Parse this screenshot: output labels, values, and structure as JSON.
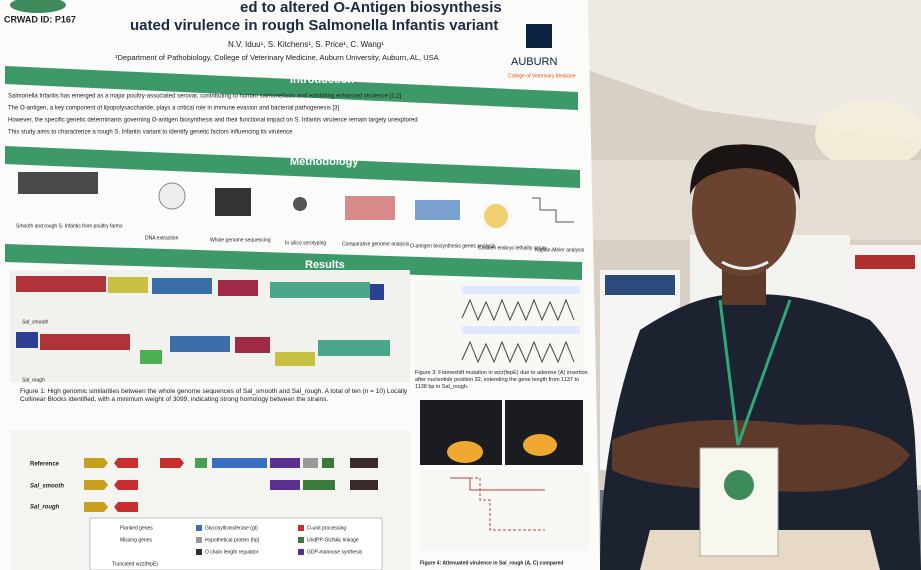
{
  "poster": {
    "id": "CRWAD ID: P167",
    "title_line1": "ed to altered O-Antigen biosynthesis",
    "title_line2": "uated virulence in rough Salmonella Infantis variant",
    "authors": "N.V. Iduu¹, S. Kitchens¹, S. Price¹, C. Wang¹",
    "affiliation": "¹Department of Pathobiology, College of Veterinary Medicine, Auburn University, Auburn, AL, USA",
    "logo_name": "AUBURN",
    "logo_sub": "College of Veterinary Medicine",
    "introduction": {
      "heading": "Introduction",
      "bullets": [
        "Salmonella Infantis has emerged as a major poultry-associated serovar, contributing to human salmonellosis and exhibiting enhanced virulence [1,2]",
        "The O-antigen, a key component of lipopolysaccharide, plays a critical role in immune evasion and bacterial pathogenesis [3]",
        "However, the specific genetic determinants governing O-antigen biosynthesis and their functional impact on S. Infantis virulence remain largely unexplored",
        "This study aims to characterize a rough S. Infantis variant to identify genetic factors influencing its virulence"
      ]
    },
    "methodology": {
      "heading": "Methodology",
      "steps": [
        "Smooth and rough S. Infantis from poultry farms",
        "DNA extraction",
        "Whole genome sequencing",
        "In silico serotyping",
        "Comparative genome analysis",
        "O-antigen biosynthesis genes analysis",
        "Chicken embryo lethality assay",
        "Kaplan-Meier analysis"
      ]
    },
    "results": {
      "heading": "Results",
      "track_smooth": "Sal_smooth",
      "track_rough": "Sal_rough",
      "figure1_caption": "Figure 1: High genomic similarities between the whole genome sequences of Sal_smooth and Sal_rough. A total of ten (n = 10) Locally Collinear Blocks identified, with a minimum weight of 3099, indicating strong homology between the strains.",
      "figure3_caption": "Figure 3: Frameshift mutation in wzz(fepE) due to adenine (A) insertion after nucleotide position 32, extending the gene length from 1137 to 1138 bp in Sal_rough.",
      "figure4_caption": "Figure 4: Attenuated virulence in Sal_rough (A, C) compared",
      "rows": [
        "Reference",
        "Sal_smooth",
        "Sal_rough"
      ],
      "legend": [
        "Flanked genes",
        "Missing genes",
        "Truncated wzz(fepE)",
        "Glycosyltransferase (gt)",
        "Hypothetical protein (hp)",
        "O chain length regulator",
        "O-unit processing",
        "UndPP-GlcNAc linkage",
        "GDP-mannose synthesis"
      ]
    }
  }
}
